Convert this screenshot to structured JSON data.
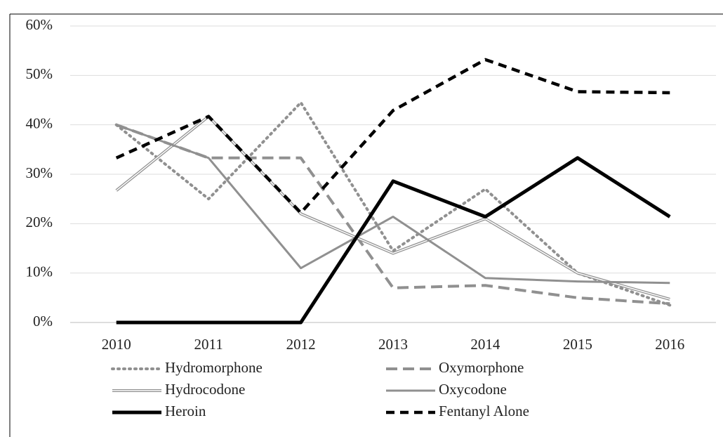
{
  "chart_data": {
    "type": "line",
    "x": [
      "2010",
      "2011",
      "2012",
      "2013",
      "2014",
      "2015",
      "2016"
    ],
    "series": [
      {
        "name": "Hydromorphone",
        "color": "#909090",
        "style": "dotted",
        "values": [
          40,
          25,
          44.5,
          14.5,
          27,
          10,
          3.5
        ]
      },
      {
        "name": "Oxymorphone",
        "color": "#909090",
        "style": "dashed",
        "values": [
          40,
          33.3,
          33.3,
          7,
          7.5,
          5,
          3.8
        ]
      },
      {
        "name": "Hydrocodone",
        "color": "#909090",
        "style": "double",
        "values": [
          26.7,
          41.7,
          22,
          14,
          21,
          10,
          4.7
        ]
      },
      {
        "name": "Oxycodone",
        "color": "#909090",
        "style": "solid",
        "values": [
          40,
          33.3,
          11,
          21.4,
          9,
          8.3,
          8
        ]
      },
      {
        "name": "Heroin",
        "color": "#000000",
        "style": "solid-bold",
        "values": [
          0,
          0,
          0,
          28.6,
          21.4,
          33.3,
          21.4
        ]
      },
      {
        "name": "Fentanyl Alone",
        "color": "#000000",
        "style": "dashed-bold",
        "values": [
          33.3,
          41.7,
          22.2,
          42.9,
          53.2,
          46.7,
          46.5
        ]
      }
    ],
    "ylim": [
      0,
      60
    ],
    "yticks": [
      {
        "value": 0,
        "label": "0%"
      },
      {
        "value": 10,
        "label": "10%"
      },
      {
        "value": 20,
        "label": "20%"
      },
      {
        "value": 30,
        "label": "30%"
      },
      {
        "value": 40,
        "label": "40%"
      },
      {
        "value": 50,
        "label": "50%"
      },
      {
        "value": 60,
        "label": "60%"
      }
    ],
    "grid": true
  }
}
